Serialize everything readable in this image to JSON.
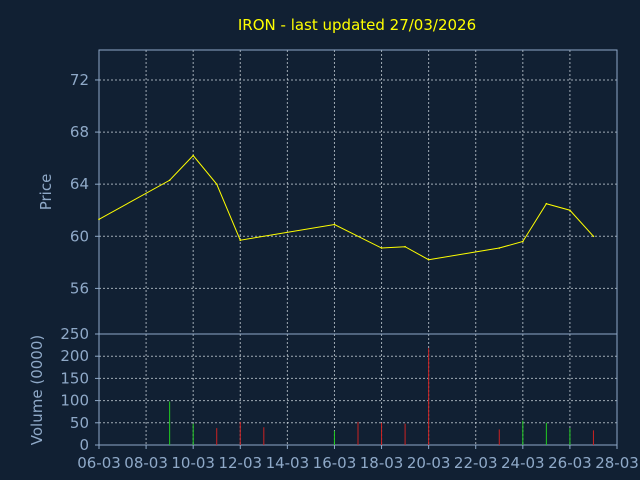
{
  "colors": {
    "background": "#112033",
    "frame": "#8fa9c8",
    "grid": "#d0d8e0",
    "text": "#8fa9c8",
    "title": "#ffff00",
    "price_line": "#ffff00",
    "volume_up": "#22cc22",
    "volume_down": "#cc2222"
  },
  "chart_data": [
    {
      "type": "line",
      "title": "IRON - last updated 27/03/2026",
      "ylabel": "Price",
      "ylim": [
        52.5,
        74.3
      ],
      "yticks": [
        56,
        60,
        64,
        68,
        72
      ],
      "ytick_labels": [
        "56",
        "60",
        "64",
        "68",
        "72"
      ],
      "xlim": [
        6,
        28
      ],
      "xticks": [
        6,
        8,
        10,
        12,
        14,
        16,
        18,
        20,
        22,
        24,
        26,
        28
      ],
      "xtick_labels": [
        "06-03",
        "08-03",
        "10-03",
        "12-03",
        "14-03",
        "16-03",
        "18-03",
        "20-03",
        "22-03",
        "24-03",
        "26-03",
        "28-03"
      ],
      "grid": true,
      "series": [
        {
          "x": [
            6,
            9,
            10,
            11,
            12,
            16,
            18,
            19,
            20,
            23,
            24,
            25,
            26,
            27
          ],
          "values": [
            61.3,
            64.3,
            66.2,
            64.0,
            59.7,
            60.9,
            59.1,
            59.2,
            58.2,
            59.1,
            59.6,
            62.5,
            62.0,
            60.0
          ]
        }
      ]
    },
    {
      "type": "bar",
      "ylabel": "Volume (0000)",
      "ylim": [
        0,
        250
      ],
      "yticks": [
        0,
        50,
        100,
        150,
        200,
        250
      ],
      "ytick_labels": [
        "0",
        "50",
        "100",
        "150",
        "200",
        "250"
      ],
      "xlim": [
        6,
        28
      ],
      "grid": true,
      "bars": [
        {
          "x": 9,
          "value": 98,
          "direction": "up"
        },
        {
          "x": 10,
          "value": 48,
          "direction": "up"
        },
        {
          "x": 11,
          "value": 38,
          "direction": "down"
        },
        {
          "x": 12,
          "value": 52,
          "direction": "down"
        },
        {
          "x": 13,
          "value": 40,
          "direction": "down"
        },
        {
          "x": 16,
          "value": 32,
          "direction": "up"
        },
        {
          "x": 17,
          "value": 52,
          "direction": "down"
        },
        {
          "x": 18,
          "value": 50,
          "direction": "down"
        },
        {
          "x": 19,
          "value": 48,
          "direction": "down"
        },
        {
          "x": 20,
          "value": 218,
          "direction": "down"
        },
        {
          "x": 23,
          "value": 35,
          "direction": "down"
        },
        {
          "x": 24,
          "value": 55,
          "direction": "up"
        },
        {
          "x": 25,
          "value": 50,
          "direction": "up"
        },
        {
          "x": 26,
          "value": 38,
          "direction": "up"
        },
        {
          "x": 27,
          "value": 33,
          "direction": "down"
        }
      ]
    }
  ]
}
